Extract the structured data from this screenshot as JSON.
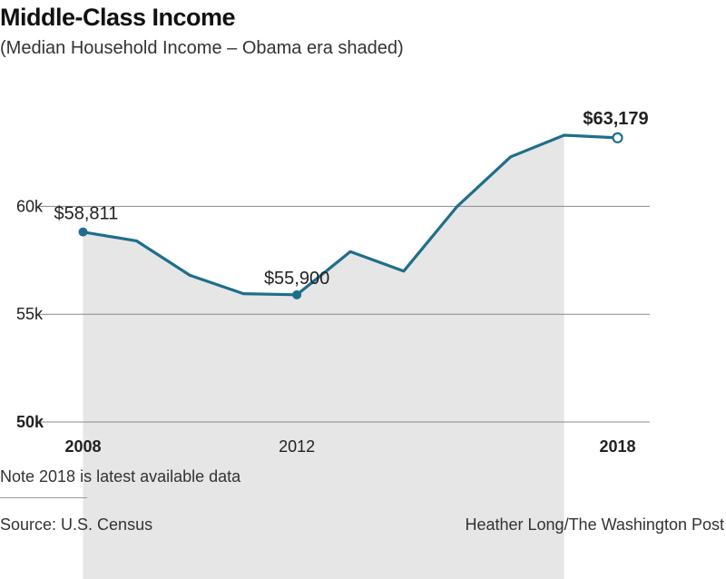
{
  "header": {
    "title": "Middle-Class Income",
    "subtitle": "(Median Household Income – Obama era shaded)"
  },
  "footer": {
    "note": "Note 2018 is latest available data",
    "source": "Source: U.S. Census",
    "credit": "Heather Long/The Washington Post"
  },
  "colors": {
    "line": "#1f6e8c",
    "shade": "#e6e6e6",
    "grid": "#888888"
  },
  "chart_data": {
    "type": "line",
    "title": "Middle-Class Income",
    "subtitle": "(Median Household Income – Obama era shaded)",
    "x": [
      2008,
      2009,
      2010,
      2011,
      2012,
      2013,
      2014,
      2015,
      2016,
      2017,
      2018
    ],
    "values": [
      58811,
      58400,
      56800,
      55950,
      55900,
      57900,
      57000,
      60000,
      62300,
      63300,
      63179
    ],
    "shaded_range": [
      2008,
      2017
    ],
    "ylim": [
      50000,
      64500
    ],
    "yticks": [
      {
        "value": 50000,
        "label": "50k",
        "bold": true
      },
      {
        "value": 55000,
        "label": "55k",
        "bold": false
      },
      {
        "value": 60000,
        "label": "60k",
        "bold": false
      }
    ],
    "xticks": [
      {
        "value": 2008,
        "label": "2008",
        "bold": true
      },
      {
        "value": 2012,
        "label": "2012",
        "bold": false
      },
      {
        "value": 2018,
        "label": "2018",
        "bold": true
      }
    ],
    "annotations": [
      {
        "x": 2008,
        "y": 58811,
        "label": "$58,811",
        "bold": false,
        "marker": "filled"
      },
      {
        "x": 2012,
        "y": 55900,
        "label": "$55,900",
        "bold": false,
        "marker": "filled"
      },
      {
        "x": 2018,
        "y": 63179,
        "label": "$63,179",
        "bold": true,
        "marker": "hollow"
      }
    ],
    "grid": true
  }
}
